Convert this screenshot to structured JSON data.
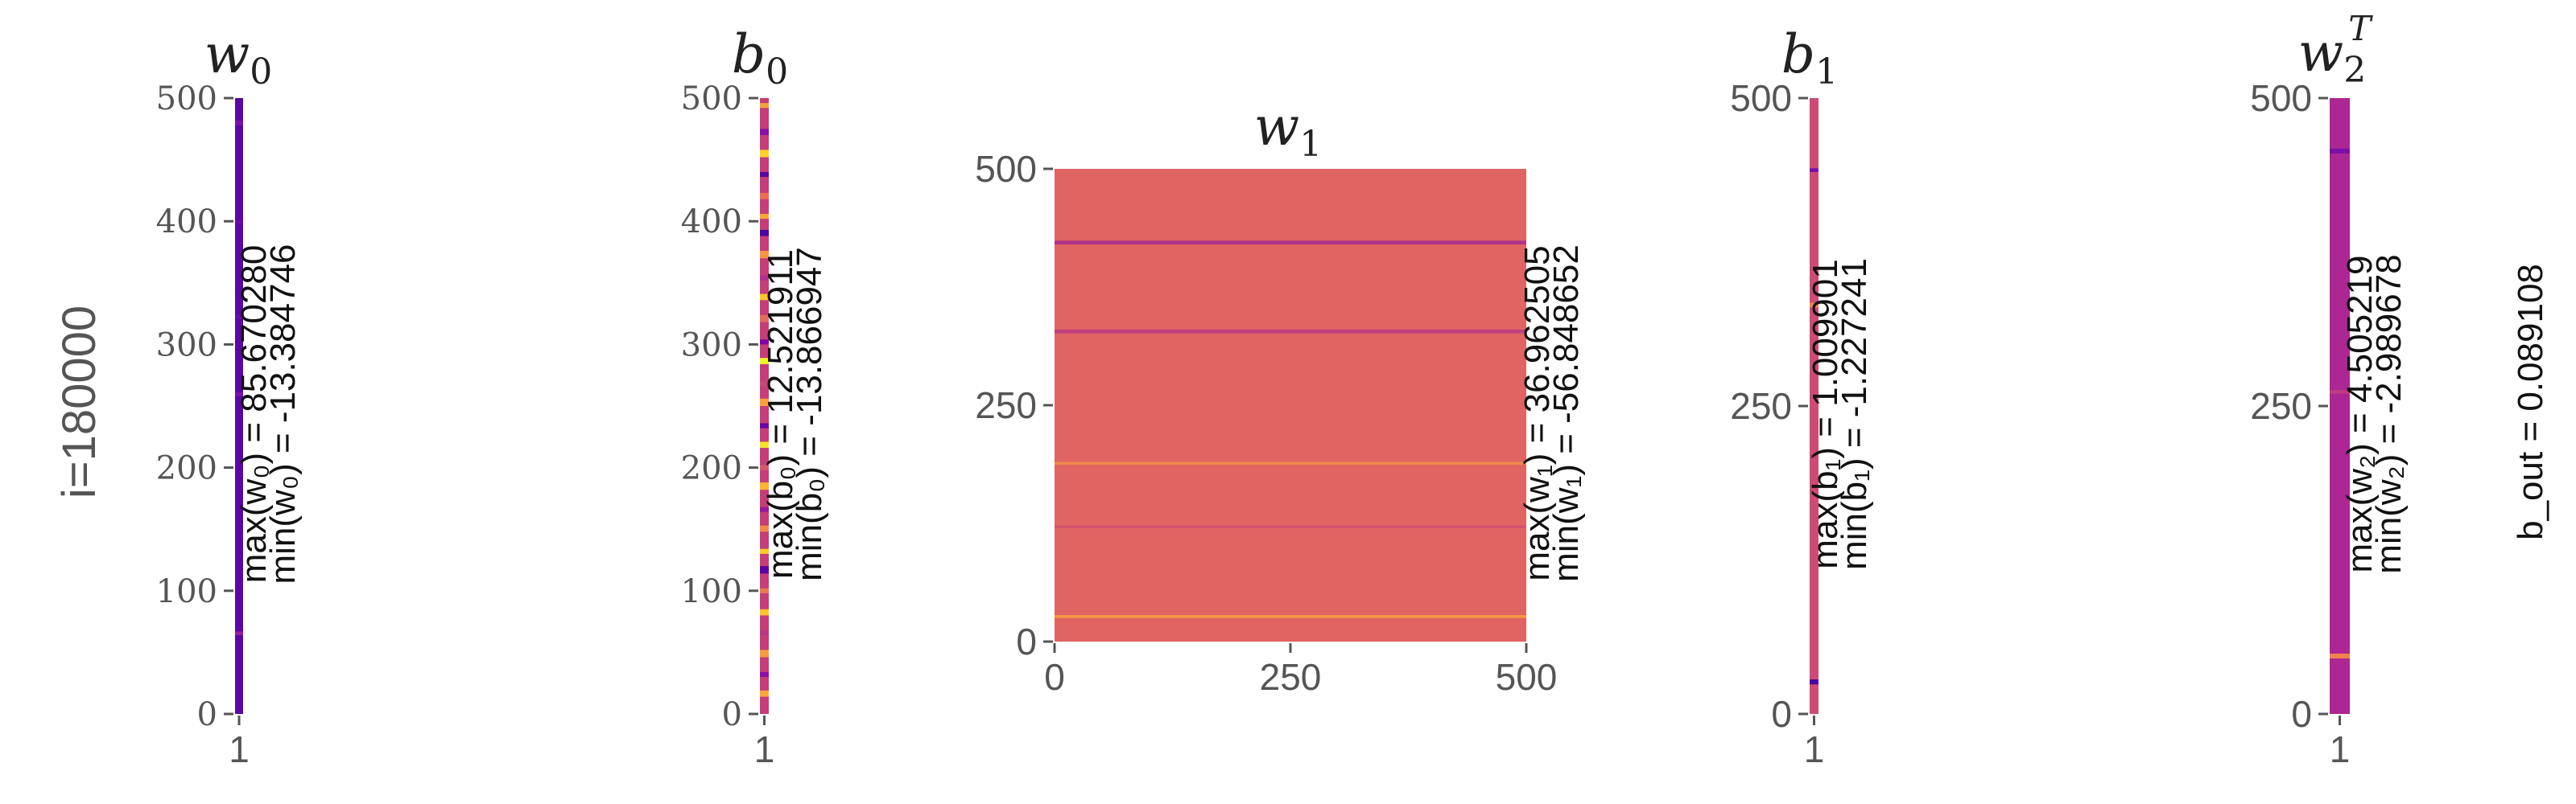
{
  "row_label": "i=180000",
  "chart_data": [
    {
      "type": "heatmap",
      "title": "w",
      "title_sub": "0",
      "title_sup": "",
      "xticks": [
        "1"
      ],
      "yticks": [
        0,
        100,
        200,
        300,
        400,
        500
      ],
      "ylim": [
        0,
        500
      ],
      "xlim": [
        0,
        1
      ],
      "base_color": "#5c06a6",
      "stripes": [
        {
          "y": 478,
          "h": 4,
          "color": "#7a10a8"
        },
        {
          "y": 398,
          "h": 3,
          "color": "#6a0aa6"
        },
        {
          "y": 321,
          "h": 3,
          "color": "#6a0aa6"
        },
        {
          "y": 258,
          "h": 3,
          "color": "#7a10a8"
        },
        {
          "y": 64,
          "h": 3,
          "color": "#a01a9c"
        }
      ],
      "annotation_max": "max(w₀) = 85.670280",
      "annotation_min": "min(w₀) = -13.384746",
      "tick_font": "serif"
    },
    {
      "type": "heatmap",
      "title": "b",
      "title_sub": "0",
      "title_sup": "",
      "xticks": [
        "1"
      ],
      "yticks": [
        0,
        100,
        200,
        300,
        400,
        500
      ],
      "ylim": [
        0,
        500
      ],
      "xlim": [
        0,
        1
      ],
      "base_color": "#c83c78",
      "stripes": [
        {
          "y": 492,
          "h": 4,
          "color": "#f5a23a"
        },
        {
          "y": 470,
          "h": 5,
          "color": "#8a0fa4"
        },
        {
          "y": 452,
          "h": 6,
          "color": "#fcd225"
        },
        {
          "y": 436,
          "h": 4,
          "color": "#5c06a6"
        },
        {
          "y": 418,
          "h": 5,
          "color": "#ee7050"
        },
        {
          "y": 402,
          "h": 4,
          "color": "#fca636"
        },
        {
          "y": 388,
          "h": 5,
          "color": "#4b03a1"
        },
        {
          "y": 370,
          "h": 6,
          "color": "#f89540"
        },
        {
          "y": 352,
          "h": 4,
          "color": "#b42e8f"
        },
        {
          "y": 336,
          "h": 5,
          "color": "#fdc527"
        },
        {
          "y": 318,
          "h": 6,
          "color": "#e56b5d"
        },
        {
          "y": 300,
          "h": 4,
          "color": "#7e03a8"
        },
        {
          "y": 284,
          "h": 5,
          "color": "#f0f921"
        },
        {
          "y": 266,
          "h": 4,
          "color": "#cc4778"
        },
        {
          "y": 250,
          "h": 6,
          "color": "#fb9f3a"
        },
        {
          "y": 232,
          "h": 4,
          "color": "#6a00a8"
        },
        {
          "y": 216,
          "h": 5,
          "color": "#f7e225"
        },
        {
          "y": 198,
          "h": 4,
          "color": "#d8576b"
        },
        {
          "y": 182,
          "h": 6,
          "color": "#fdb32f"
        },
        {
          "y": 164,
          "h": 4,
          "color": "#9c179e"
        },
        {
          "y": 148,
          "h": 5,
          "color": "#f48849"
        },
        {
          "y": 130,
          "h": 4,
          "color": "#fccd25"
        },
        {
          "y": 114,
          "h": 6,
          "color": "#5c01a6"
        },
        {
          "y": 98,
          "h": 4,
          "color": "#ed7953"
        },
        {
          "y": 80,
          "h": 5,
          "color": "#fdc328"
        },
        {
          "y": 64,
          "h": 4,
          "color": "#bd3786"
        },
        {
          "y": 46,
          "h": 6,
          "color": "#f99b3e"
        },
        {
          "y": 30,
          "h": 4,
          "color": "#8f0da4"
        },
        {
          "y": 14,
          "h": 5,
          "color": "#fca835"
        }
      ],
      "annotation_max": "max(b₀) = 12.521911",
      "annotation_min": "min(b₀) = -13.866947",
      "tick_font": "serif"
    },
    {
      "type": "heatmap",
      "title": "w",
      "title_sub": "1",
      "title_sup": "",
      "xticks": [
        "0",
        "250",
        "500"
      ],
      "xtick_values": [
        0,
        250,
        500
      ],
      "yticks": [
        0,
        250,
        500
      ],
      "ylim": [
        0,
        500
      ],
      "xlim": [
        0,
        500
      ],
      "base_color": "#e06462",
      "stripes": [
        {
          "y": 420,
          "h": 4,
          "color": "#b0348a"
        },
        {
          "y": 326,
          "h": 4,
          "color": "#c2407e"
        },
        {
          "y": 187,
          "h": 3,
          "color": "#f08a4b"
        },
        {
          "y": 120,
          "h": 3,
          "color": "#d4526d"
        },
        {
          "y": 25,
          "h": 3,
          "color": "#f59a42"
        }
      ],
      "annotation_max": "max(w₁) = 36.962505",
      "annotation_min": "min(w₁) = -56.848652",
      "tick_font": "sans"
    },
    {
      "type": "heatmap",
      "title": "b",
      "title_sub": "1",
      "title_sup": "",
      "xticks": [
        "1"
      ],
      "yticks": [
        0,
        250,
        500
      ],
      "ylim": [
        0,
        500
      ],
      "xlim": [
        0,
        1
      ],
      "base_color": "#cf4a74",
      "stripes": [
        {
          "y": 440,
          "h": 3,
          "color": "#7a10a8"
        },
        {
          "y": 330,
          "h": 4,
          "color": "#f0824f"
        },
        {
          "y": 24,
          "h": 4,
          "color": "#4b03a1"
        }
      ],
      "annotation_max": "max(b₁) = 1.009901",
      "annotation_min": "min(b₁) = -1.227241",
      "tick_font": "sans"
    },
    {
      "type": "heatmap",
      "title": "w",
      "title_sub": "2",
      "title_sup": "T",
      "xticks": [
        "1"
      ],
      "yticks": [
        0,
        250,
        500
      ],
      "ylim": [
        0,
        500
      ],
      "xlim": [
        0,
        1
      ],
      "base_color": "#ac2694",
      "stripes": [
        {
          "y": 455,
          "h": 4,
          "color": "#7a10a8"
        },
        {
          "y": 260,
          "h": 3,
          "color": "#c23a80"
        },
        {
          "y": 45,
          "h": 4,
          "color": "#f0824f"
        }
      ],
      "annotation_max": "max(w₂) = 4.505219",
      "annotation_min": "min(w₂) = -2.989678",
      "tick_font": "sans"
    }
  ],
  "side_annotation": "b_out = 0.089108"
}
